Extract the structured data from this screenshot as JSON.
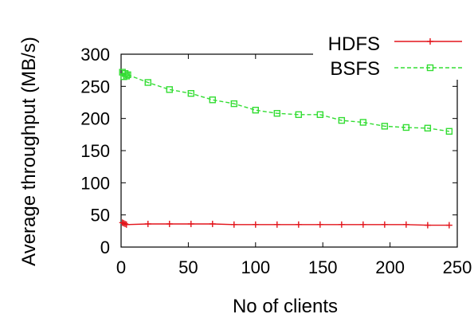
{
  "chart_data": {
    "type": "line",
    "xlabel": "No of clients",
    "ylabel": "Average throughput (MB/s)",
    "xlim": [
      0,
      250
    ],
    "ylim": [
      0,
      300
    ],
    "xticks": [
      0,
      50,
      100,
      150,
      200,
      250
    ],
    "yticks": [
      0,
      50,
      100,
      150,
      200,
      250,
      300
    ],
    "grid": false,
    "legend_position": "top-right",
    "series": [
      {
        "name": "HDFS",
        "color": "#e3141b",
        "marker": "plus",
        "line_style": "solid",
        "x": [
          1,
          2,
          3,
          4,
          20,
          36,
          52,
          68,
          84,
          100,
          116,
          132,
          148,
          164,
          180,
          196,
          212,
          228,
          244
        ],
        "y": [
          38,
          37,
          36,
          35,
          36,
          36,
          36,
          36,
          35,
          35,
          35,
          35,
          35,
          35,
          35,
          35,
          35,
          34,
          34
        ]
      },
      {
        "name": "BSFS",
        "color": "#33dd33",
        "marker": "square",
        "line_style": "dashed",
        "x": [
          1,
          2,
          3,
          4,
          5,
          20,
          36,
          52,
          68,
          84,
          100,
          116,
          132,
          148,
          164,
          180,
          196,
          212,
          228,
          244
        ],
        "y": [
          272,
          265,
          270,
          266,
          268,
          256,
          245,
          239,
          229,
          223,
          213,
          208,
          206,
          206,
          197,
          194,
          188,
          186,
          185,
          180
        ]
      }
    ]
  }
}
